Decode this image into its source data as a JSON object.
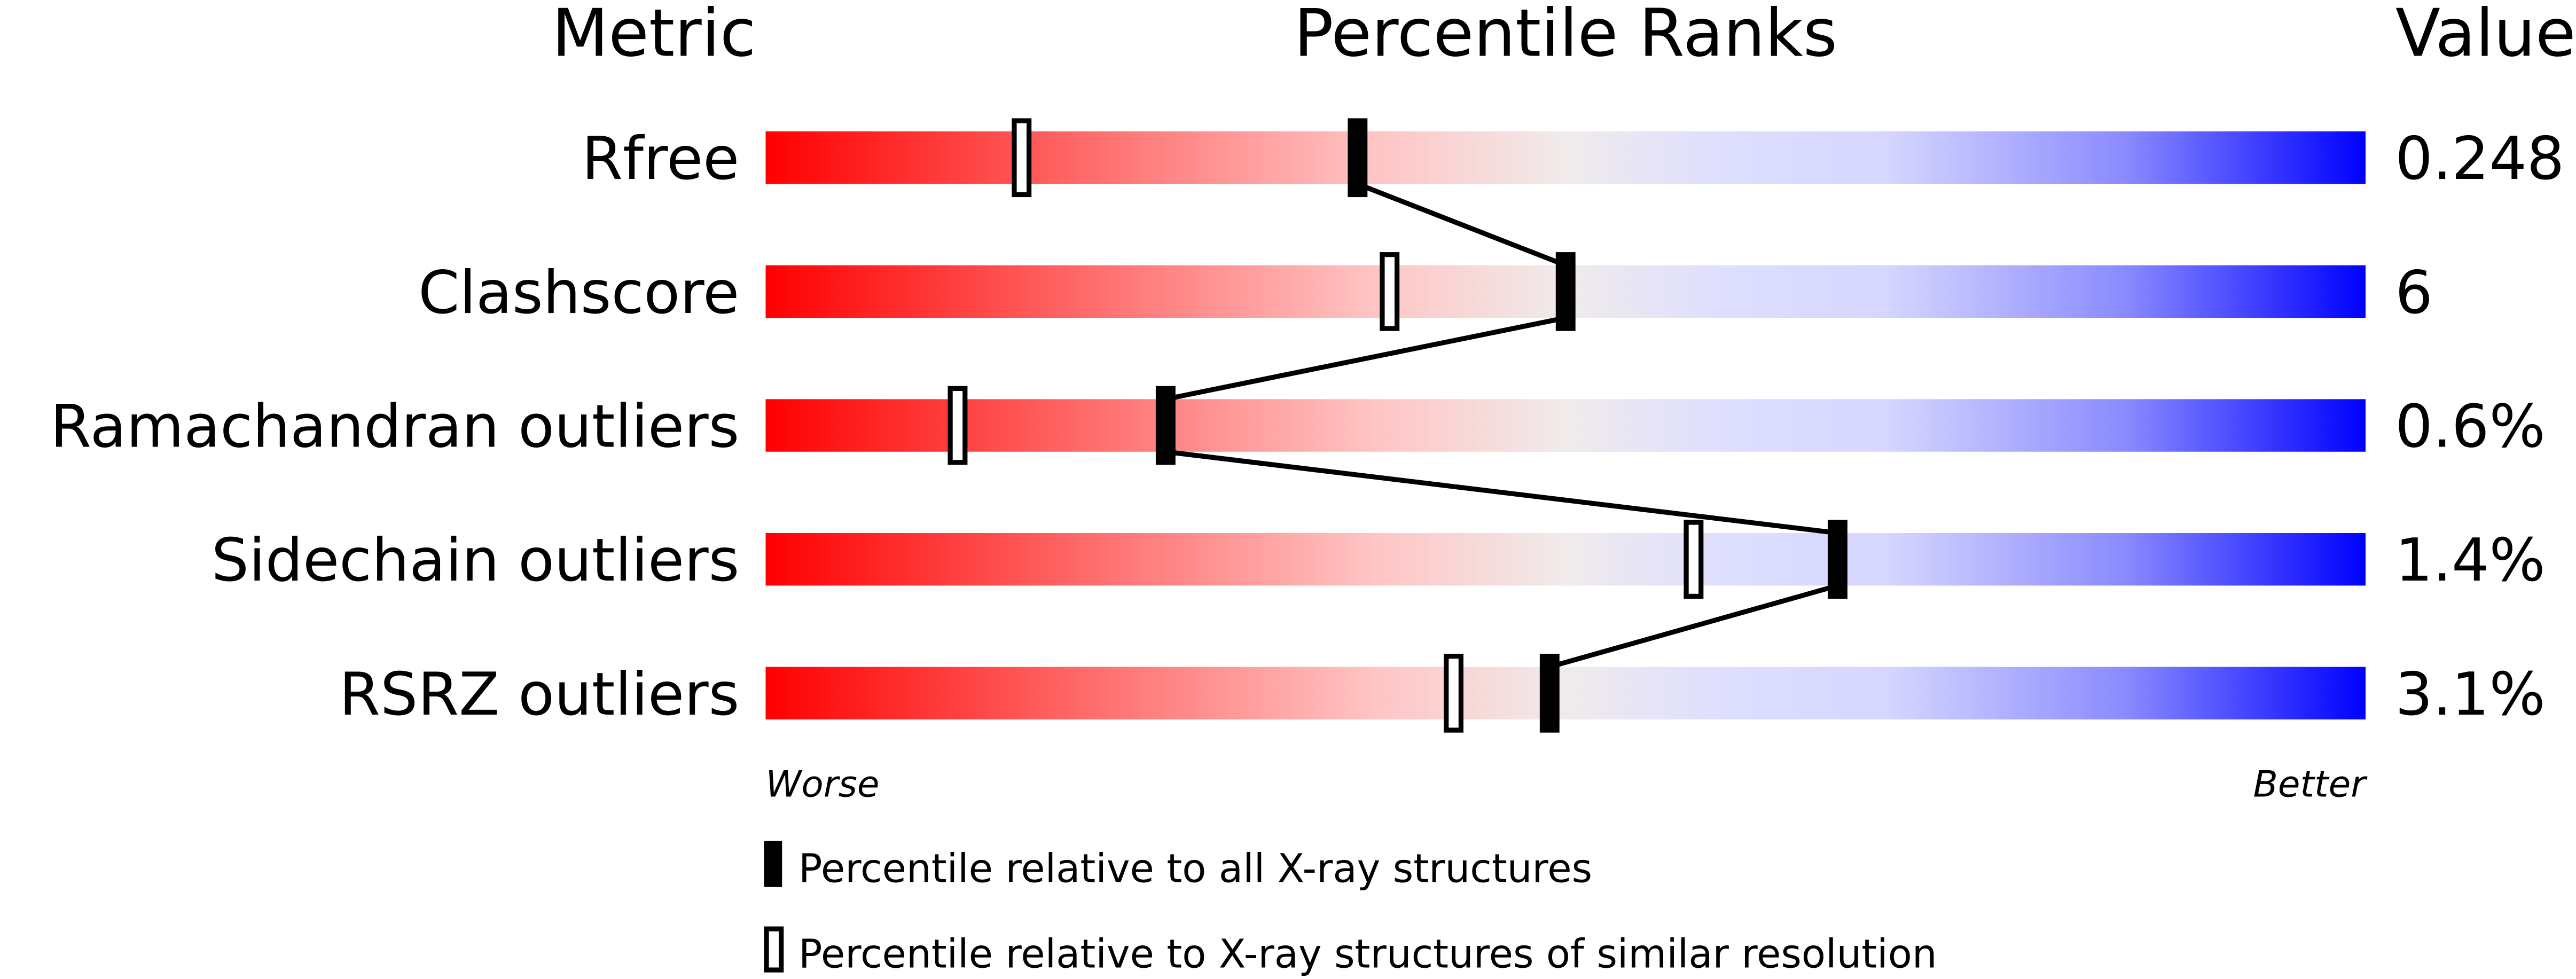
{
  "chart_data": {
    "type": "percentile-slider",
    "headers": {
      "metric": "Metric",
      "percentile": "Percentile Ranks",
      "value": "Value"
    },
    "xlim": [
      0,
      100
    ],
    "axis_labels": {
      "left": "Worse",
      "right": "Better"
    },
    "metrics": [
      {
        "name": "Rfree",
        "value": "0.248",
        "percentile_all": 37,
        "percentile_similar": 16
      },
      {
        "name": "Clashscore",
        "value": "6",
        "percentile_all": 50,
        "percentile_similar": 39
      },
      {
        "name": "Ramachandran outliers",
        "value": "0.6%",
        "percentile_all": 25,
        "percentile_similar": 12
      },
      {
        "name": "Sidechain outliers",
        "value": "1.4%",
        "percentile_all": 67,
        "percentile_similar": 58
      },
      {
        "name": "RSRZ outliers",
        "value": "3.1%",
        "percentile_all": 49,
        "percentile_similar": 43
      }
    ],
    "legend": [
      {
        "marker": "filled",
        "label": "Percentile relative to all X-ray structures"
      },
      {
        "marker": "open",
        "label": "Percentile relative to X-ray structures of similar resolution"
      }
    ],
    "colors": {
      "worse": "#ff0000",
      "middle": "#f0ebeb",
      "better": "#0000ff",
      "marker": "#000000"
    }
  }
}
